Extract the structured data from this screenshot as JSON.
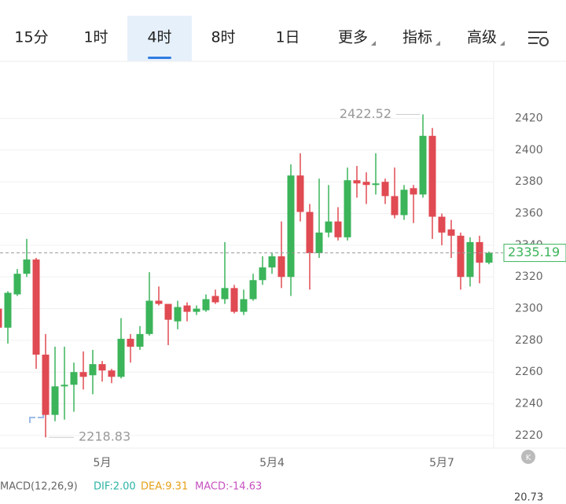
{
  "tabs": [
    "15分",
    "1时",
    "4时",
    "8时",
    "1日",
    "更多",
    "指标",
    "高级"
  ],
  "chart_data": {
    "type": "candlestick",
    "categories": [
      null,
      null,
      null,
      null,
      null,
      null,
      null,
      null,
      null,
      null,
      null,
      "5月",
      null,
      null,
      null,
      null,
      null,
      null,
      null,
      null,
      null,
      null,
      null,
      null,
      null,
      null,
      null,
      null,
      null,
      "5月4",
      null,
      null,
      null,
      null,
      null,
      null,
      null,
      null,
      null,
      null,
      null,
      null,
      null,
      null,
      null,
      null,
      null,
      "5月7",
      null,
      null,
      null,
      null,
      null
    ],
    "open": [
      2300,
      2288,
      2309,
      2322,
      2331,
      2271,
      2233,
      2251,
      2252,
      2260,
      2258,
      2265,
      2261,
      2257,
      2281,
      2276,
      2284,
      2305,
      2303,
      2292,
      2302,
      2298,
      2299,
      2308,
      2306,
      2313,
      2298,
      2306,
      2318,
      2326,
      2333,
      2320,
      2384,
      2361,
      2335,
      2348,
      2355,
      2345,
      2381,
      2380,
      2378,
      2380,
      2371,
      2359,
      2376,
      2372,
      2409,
      2358,
      2350,
      2346,
      2320,
      2342,
      2329
    ],
    "high": [
      2305,
      2311,
      2325,
      2344,
      2332,
      2284,
      2276,
      2276,
      2266,
      2273,
      2274,
      2267,
      2262,
      2294,
      2284,
      2289,
      2323,
      2314,
      2303,
      2305,
      2304,
      2302,
      2309,
      2312,
      2342,
      2315,
      2312,
      2322,
      2333,
      2335,
      2355,
      2391,
      2398,
      2366,
      2382,
      2378,
      2364,
      2389,
      2390,
      2386,
      2398,
      2382,
      2389,
      2378,
      2378,
      2422.52,
      2414,
      2360,
      2356,
      2348,
      2345,
      2346,
      2336
    ],
    "low": [
      2286,
      2278,
      2308,
      2320,
      2262,
      2218.83,
      2229,
      2230,
      2235,
      2249,
      2246,
      2254,
      2253,
      2256,
      2266,
      2274,
      2283,
      2302,
      2277,
      2287,
      2292,
      2296,
      2298,
      2303,
      2303,
      2297,
      2296,
      2305,
      2315,
      2322,
      2313,
      2308,
      2355,
      2312,
      2332,
      2345,
      2343,
      2343,
      2370,
      2366,
      2372,
      2366,
      2357,
      2356,
      2354,
      2370,
      2344,
      2340,
      2332,
      2312,
      2314,
      2316,
      2328
    ],
    "close": [
      2288,
      2310,
      2322,
      2331,
      2271,
      2233,
      2251,
      2252,
      2260,
      2257,
      2265,
      2261,
      2257,
      2281,
      2276,
      2284,
      2305,
      2303,
      2293,
      2301,
      2298,
      2300,
      2306,
      2304,
      2313,
      2298,
      2306,
      2318,
      2326,
      2333,
      2320,
      2384,
      2361,
      2335,
      2348,
      2355,
      2345,
      2381,
      2379,
      2378,
      2379,
      2371,
      2359,
      2375,
      2372,
      2409,
      2358,
      2348,
      2346,
      2320,
      2342,
      2329,
      2335.19
    ],
    "up_color": "#3bb45a",
    "down_color": "#e04a52",
    "ylim": [
      2212,
      2456
    ],
    "yticks": [
      2220,
      2240,
      2260,
      2280,
      2300,
      2320,
      2340,
      2360,
      2380,
      2400,
      2420
    ],
    "grid": true
  },
  "indicator": {
    "name": "MACD(12,26,9)",
    "dif": "DIF:2.00",
    "dea": "DEA:9.31",
    "macd": "MACD:-14.63",
    "scale": "20.73"
  }
}
